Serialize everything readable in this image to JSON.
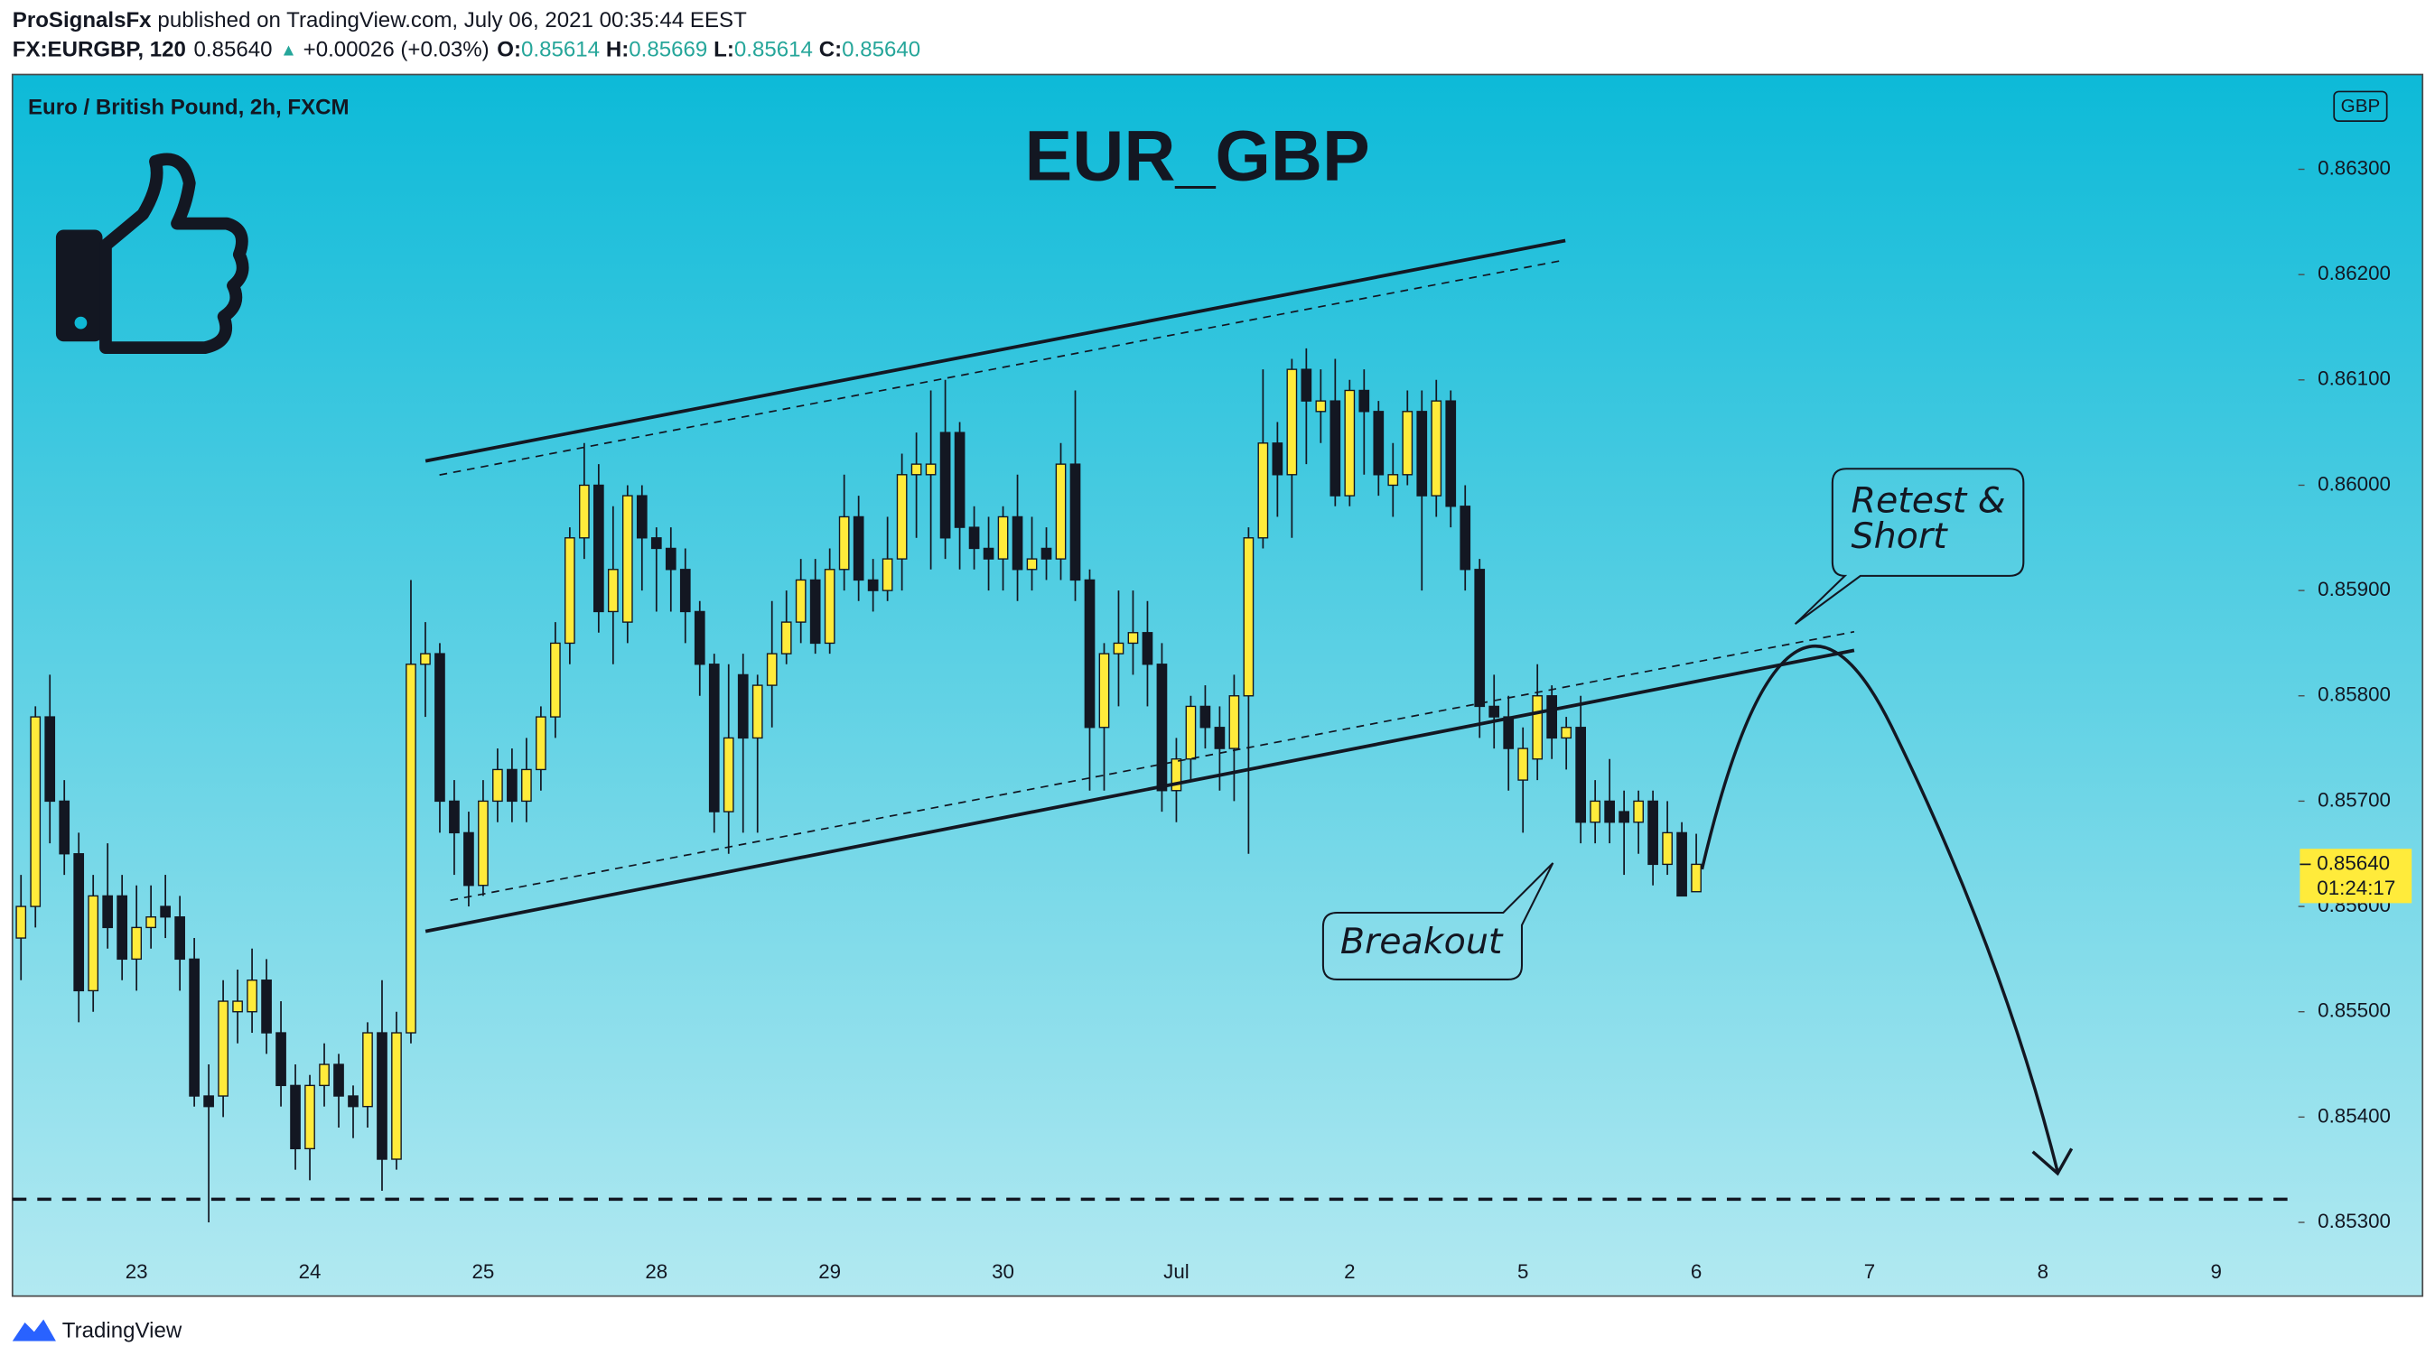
{
  "header": {
    "publisher": "ProSignalsFx",
    "published": "published on TradingView.com, July 06, 2021 00:35:44 EEST",
    "symbol": "FX:EURGBP, 120",
    "last": "0.85640",
    "arrow": "▲",
    "change": "+0.00026 (+0.03%)",
    "ohlc": [
      {
        "label": "O:",
        "value": "0.85614"
      },
      {
        "label": "H:",
        "value": "0.85669"
      },
      {
        "label": "L:",
        "value": "0.85614"
      },
      {
        "label": "C:",
        "value": "0.85640"
      }
    ]
  },
  "chart_data": {
    "type": "candlestick",
    "subtitle": "Euro / British Pound, 2h, FXCM",
    "title": "EUR_GBP",
    "currency": "GBP",
    "annotations": {
      "retest": [
        "Retest &",
        "Short"
      ],
      "breakout": "Breakout"
    },
    "price_tag": {
      "price": "0.85640",
      "countdown": "01:24:17"
    },
    "x_labels": [
      "23",
      "24",
      "25",
      "28",
      "29",
      "30",
      "Jul",
      "2",
      "5",
      "6",
      "7",
      "8",
      "9"
    ],
    "up_color": "#ffeb3b",
    "down_color": "#131722",
    "wick_color": "#131722",
    "support_level": 0.85322,
    "ylim": [
      0.8523,
      0.8639
    ],
    "yticks": [
      {
        "value": 0.853,
        "label": "0.85300"
      },
      {
        "value": 0.854,
        "label": "0.85400"
      },
      {
        "value": 0.855,
        "label": "0.85500"
      },
      {
        "value": 0.856,
        "label": "0.85600"
      },
      {
        "value": 0.857,
        "label": "0.85700"
      },
      {
        "value": 0.858,
        "label": "0.85800"
      },
      {
        "value": 0.859,
        "label": "0.85900"
      },
      {
        "value": 0.86,
        "label": "0.86000"
      },
      {
        "value": 0.861,
        "label": "0.86100"
      },
      {
        "value": 0.862,
        "label": "0.86200"
      },
      {
        "value": 0.863,
        "label": "0.86300"
      }
    ],
    "open": [
      0.8557,
      0.856,
      0.8578,
      0.857,
      0.8565,
      0.8552,
      0.8561,
      0.8561,
      0.8555,
      0.8558,
      0.856,
      0.8559,
      0.8555,
      0.8542,
      0.8542,
      0.855,
      0.855,
      0.8553,
      0.8548,
      0.8543,
      0.8537,
      0.8543,
      0.8545,
      0.8542,
      0.8541,
      0.8548,
      0.8536,
      0.8548,
      0.8583,
      0.8584,
      0.857,
      0.8567,
      0.8562,
      0.857,
      0.8573,
      0.857,
      0.8573,
      0.8578,
      0.8585,
      0.8595,
      0.86,
      0.8588,
      0.8587,
      0.8599,
      0.8595,
      0.8594,
      0.8592,
      0.8588,
      0.8583,
      0.8569,
      0.8582,
      0.8576,
      0.8581,
      0.8584,
      0.8587,
      0.8591,
      0.8585,
      0.8592,
      0.8597,
      0.8591,
      0.859,
      0.8593,
      0.8601,
      0.8601,
      0.8605,
      0.8605,
      0.8596,
      0.8594,
      0.8593,
      0.8597,
      0.8592,
      0.8594,
      0.8593,
      0.8602,
      0.8591,
      0.8577,
      0.8584,
      0.8585,
      0.8586,
      0.8583,
      0.8571,
      0.8574,
      0.8579,
      0.8577,
      0.8575,
      0.858,
      0.8595,
      0.8604,
      0.8601,
      0.8611,
      0.8607,
      0.8608,
      0.8599,
      0.8609,
      0.8607,
      0.86,
      0.8601,
      0.8607,
      0.8599,
      0.8608,
      0.8598,
      0.8592,
      0.8579,
      0.8578,
      0.8572,
      0.8574,
      0.858,
      0.8576,
      0.8577,
      0.8568,
      0.857,
      0.8569,
      0.8568,
      0.857,
      0.8564,
      0.8567,
      0.85614
    ],
    "high": [
      0.8563,
      0.8579,
      0.8582,
      0.8572,
      0.8567,
      0.8563,
      0.8566,
      0.8563,
      0.8562,
      0.8562,
      0.8563,
      0.8561,
      0.8557,
      0.8545,
      0.8553,
      0.8554,
      0.8556,
      0.8555,
      0.8551,
      0.8545,
      0.8544,
      0.8547,
      0.8546,
      0.8543,
      0.8549,
      0.8553,
      0.855,
      0.8591,
      0.8587,
      0.8585,
      0.8572,
      0.8569,
      0.8572,
      0.8575,
      0.8575,
      0.8576,
      0.8579,
      0.8587,
      0.8596,
      0.8604,
      0.8602,
      0.8598,
      0.86,
      0.86,
      0.8596,
      0.8596,
      0.8594,
      0.8589,
      0.8584,
      0.8583,
      0.8584,
      0.8582,
      0.8589,
      0.859,
      0.8593,
      0.8593,
      0.8594,
      0.8601,
      0.8599,
      0.8593,
      0.8597,
      0.8603,
      0.8605,
      0.8609,
      0.861,
      0.8606,
      0.8598,
      0.8597,
      0.8598,
      0.8601,
      0.8597,
      0.8596,
      0.8604,
      0.8609,
      0.8592,
      0.8585,
      0.859,
      0.859,
      0.8589,
      0.8585,
      0.8576,
      0.858,
      0.8581,
      0.8579,
      0.8582,
      0.8596,
      0.8611,
      0.8606,
      0.8612,
      0.8613,
      0.8611,
      0.8612,
      0.861,
      0.8611,
      0.8608,
      0.8604,
      0.8609,
      0.8609,
      0.861,
      0.8609,
      0.86,
      0.8593,
      0.8582,
      0.858,
      0.8577,
      0.8583,
      0.8581,
      0.8578,
      0.858,
      0.8572,
      0.8574,
      0.8571,
      0.8571,
      0.8571,
      0.857,
      0.8568,
      0.85669
    ],
    "low": [
      0.8553,
      0.8558,
      0.8566,
      0.8563,
      0.8549,
      0.855,
      0.8556,
      0.8553,
      0.8552,
      0.8556,
      0.8557,
      0.8552,
      0.8541,
      0.853,
      0.854,
      0.8547,
      0.8548,
      0.8546,
      0.8541,
      0.8535,
      0.8534,
      0.8541,
      0.8539,
      0.8538,
      0.8539,
      0.8533,
      0.8535,
      0.8547,
      0.8578,
      0.8567,
      0.8563,
      0.856,
      0.8561,
      0.8568,
      0.8568,
      0.8568,
      0.8571,
      0.8576,
      0.8583,
      0.8593,
      0.8586,
      0.8583,
      0.8585,
      0.859,
      0.8588,
      0.8588,
      0.8585,
      0.858,
      0.8567,
      0.8565,
      0.8567,
      0.8567,
      0.8577,
      0.8583,
      0.8585,
      0.8584,
      0.8584,
      0.859,
      0.8589,
      0.8588,
      0.8589,
      0.859,
      0.8595,
      0.8592,
      0.8593,
      0.8592,
      0.8592,
      0.859,
      0.859,
      0.8589,
      0.859,
      0.8591,
      0.8591,
      0.8589,
      0.8571,
      0.8571,
      0.8579,
      0.8582,
      0.8579,
      0.8569,
      0.8568,
      0.8572,
      0.8575,
      0.8571,
      0.857,
      0.8565,
      0.8594,
      0.8597,
      0.8595,
      0.8602,
      0.8604,
      0.8598,
      0.8598,
      0.8601,
      0.8599,
      0.8597,
      0.86,
      0.859,
      0.8597,
      0.8596,
      0.859,
      0.8576,
      0.8575,
      0.8571,
      0.8567,
      0.8572,
      0.8574,
      0.8573,
      0.8566,
      0.8566,
      0.8566,
      0.8563,
      0.8565,
      0.8562,
      0.8563,
      0.8561,
      0.85614
    ],
    "close": [
      0.856,
      0.8578,
      0.857,
      0.8565,
      0.8552,
      0.8561,
      0.8558,
      0.8555,
      0.8558,
      0.8559,
      0.8559,
      0.8555,
      0.8542,
      0.8541,
      0.8551,
      0.8551,
      0.8553,
      0.8548,
      0.8543,
      0.8537,
      0.8543,
      0.8545,
      0.8542,
      0.8541,
      0.8548,
      0.8536,
      0.8548,
      0.8583,
      0.8584,
      0.857,
      0.8567,
      0.8562,
      0.857,
      0.8573,
      0.857,
      0.8573,
      0.8578,
      0.8585,
      0.8595,
      0.86,
      0.8588,
      0.8592,
      0.8599,
      0.8595,
      0.8594,
      0.8592,
      0.8588,
      0.8583,
      0.8569,
      0.8576,
      0.8576,
      0.8581,
      0.8584,
      0.8587,
      0.8591,
      0.8585,
      0.8592,
      0.8597,
      0.8591,
      0.859,
      0.8593,
      0.8601,
      0.8602,
      0.8602,
      0.8595,
      0.8596,
      0.8594,
      0.8593,
      0.8597,
      0.8592,
      0.8593,
      0.8593,
      0.8602,
      0.8591,
      0.8577,
      0.8584,
      0.8585,
      0.8586,
      0.8583,
      0.8571,
      0.8574,
      0.8579,
      0.8577,
      0.8575,
      0.858,
      0.8595,
      0.8604,
      0.8601,
      0.8611,
      0.8608,
      0.8608,
      0.8599,
      0.8609,
      0.8607,
      0.8601,
      0.8601,
      0.8607,
      0.8599,
      0.8608,
      0.8598,
      0.8592,
      0.8579,
      0.8578,
      0.8575,
      0.8575,
      0.858,
      0.8576,
      0.8577,
      0.8568,
      0.857,
      0.8568,
      0.8568,
      0.857,
      0.8564,
      0.8567,
      0.8561,
      0.8564
    ]
  },
  "footer": {
    "brand": "TradingView"
  }
}
